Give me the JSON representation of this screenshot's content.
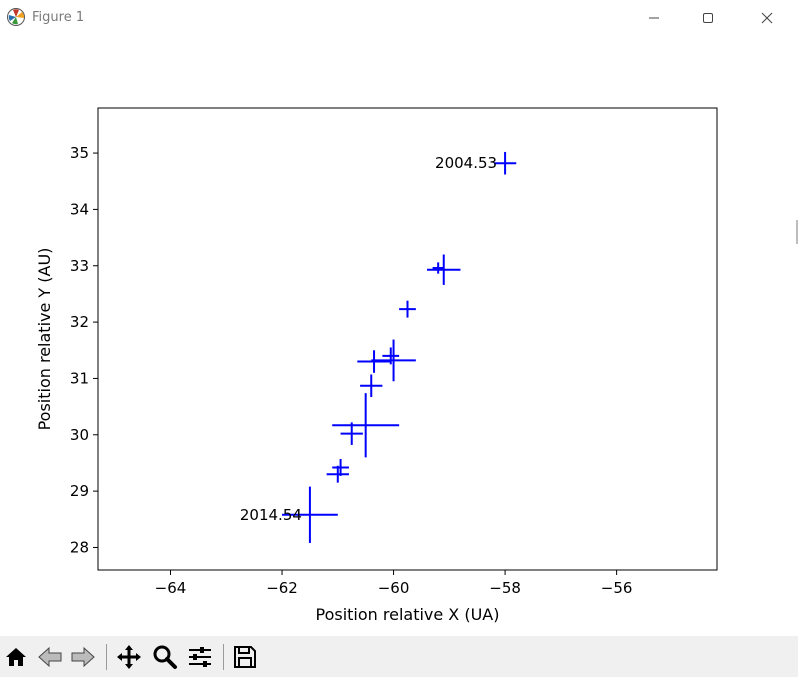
{
  "window": {
    "title": "Figure 1",
    "app_icon": "matplotlib-logo-icon",
    "controls": [
      "minimize-icon",
      "maximize-icon",
      "close-icon"
    ]
  },
  "toolbar": {
    "buttons": [
      "home-icon",
      "back-icon",
      "forward-icon",
      "pan-icon",
      "zoom-icon",
      "configure-subplots-icon",
      "save-icon"
    ]
  },
  "chart_data": {
    "type": "scatter",
    "style": "error-bar crosses (markers = crosshair of x and y uncertainty)",
    "color": "#0000ff",
    "title": "",
    "xlabel": "Position relative X (UA)",
    "ylabel": "Position relative Y (AU)",
    "xlim": [
      -65.3,
      -54.2
    ],
    "ylim": [
      27.6,
      35.8
    ],
    "xticks": [
      -64,
      -62,
      -60,
      -58,
      -56
    ],
    "xtick_labels": [
      "−64",
      "−62",
      "−60",
      "−58",
      "−56"
    ],
    "yticks": [
      28,
      29,
      30,
      31,
      32,
      33,
      34,
      35
    ],
    "ytick_labels": [
      "28",
      "29",
      "30",
      "31",
      "32",
      "33",
      "34",
      "35"
    ],
    "grid": false,
    "points": [
      {
        "x": -58.0,
        "y": 34.82,
        "xerr": 0.2,
        "yerr": 0.2
      },
      {
        "x": -59.2,
        "y": 32.96,
        "xerr": 0.1,
        "yerr": 0.1
      },
      {
        "x": -59.1,
        "y": 32.93,
        "xerr": 0.3,
        "yerr": 0.27
      },
      {
        "x": -59.75,
        "y": 32.23,
        "xerr": 0.15,
        "yerr": 0.15
      },
      {
        "x": -60.05,
        "y": 31.4,
        "xerr": 0.15,
        "yerr": 0.15
      },
      {
        "x": -60.0,
        "y": 31.32,
        "xerr": 0.4,
        "yerr": 0.37
      },
      {
        "x": -60.35,
        "y": 31.3,
        "xerr": 0.3,
        "yerr": 0.2
      },
      {
        "x": -60.4,
        "y": 30.87,
        "xerr": 0.2,
        "yerr": 0.2
      },
      {
        "x": -60.5,
        "y": 30.17,
        "xerr": 0.6,
        "yerr": 0.57
      },
      {
        "x": -60.75,
        "y": 30.02,
        "xerr": 0.2,
        "yerr": 0.2
      },
      {
        "x": -60.95,
        "y": 29.42,
        "xerr": 0.15,
        "yerr": 0.15
      },
      {
        "x": -61.0,
        "y": 29.3,
        "xerr": 0.2,
        "yerr": 0.15
      },
      {
        "x": -61.5,
        "y": 28.58,
        "xerr": 0.5,
        "yerr": 0.5
      }
    ],
    "annotations": [
      {
        "text": "2004.53",
        "x": -58.0,
        "y": 34.82
      },
      {
        "text": "2014.54",
        "x": -61.5,
        "y": 28.58
      }
    ]
  }
}
